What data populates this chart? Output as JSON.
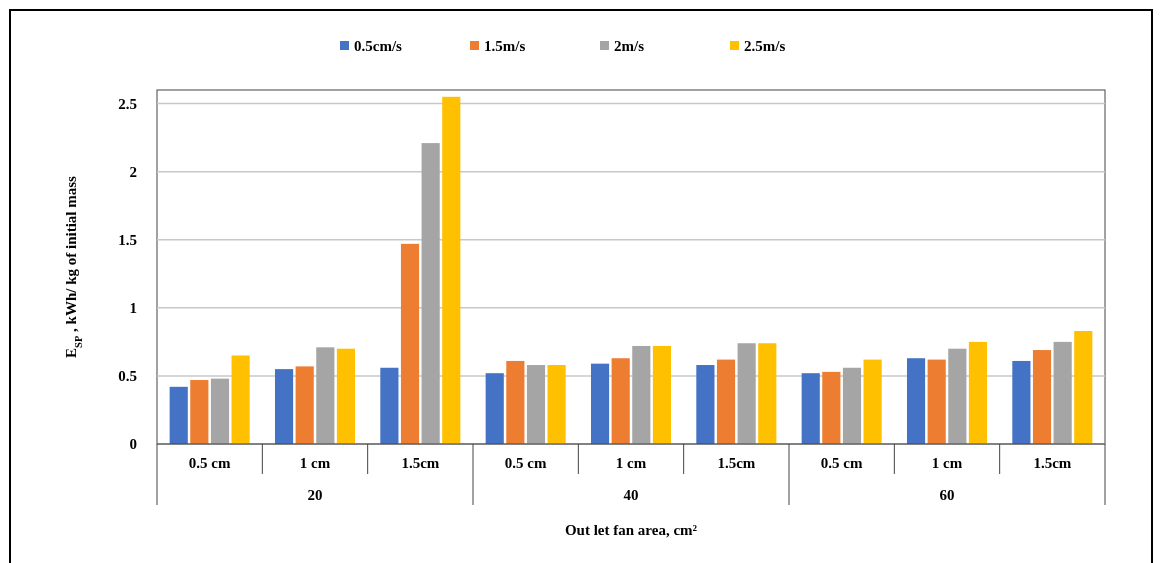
{
  "chart_data": {
    "type": "bar",
    "xlabel": "Out let fan area, cm²",
    "ylabel": "E$_{SP}$ , kWh/ kg of initial mass",
    "categories": [
      "0.5 cm",
      "1 cm",
      "1.5cm",
      "0.5 cm",
      "1 cm",
      "1.5cm",
      "0.5 cm",
      "1 cm",
      "1.5cm"
    ],
    "annotations": [
      "20",
      "40",
      "60"
    ],
    "series": [
      {
        "name": "0.5cm/s",
        "color": "#4472c4",
        "values": [
          0.42,
          0.55,
          0.56,
          0.52,
          0.59,
          0.58,
          0.52,
          0.63,
          0.61
        ]
      },
      {
        "name": "1.5m/s",
        "color": "#ed7d31",
        "values": [
          0.47,
          0.57,
          1.47,
          0.61,
          0.63,
          0.62,
          0.53,
          0.62,
          0.69
        ]
      },
      {
        "name": "2m/s",
        "color": "#a5a5a5",
        "values": [
          0.48,
          0.71,
          2.21,
          0.58,
          0.72,
          0.74,
          0.56,
          0.7,
          0.75
        ]
      },
      {
        "name": "2.5m/s",
        "color": "#ffc000",
        "values": [
          0.65,
          0.7,
          2.55,
          0.58,
          0.72,
          0.74,
          0.62,
          0.75,
          0.83
        ]
      }
    ],
    "ylim": [
      0,
      2.6
    ],
    "yticks": [
      0,
      0.5,
      1,
      1.5,
      2,
      2.5
    ],
    "grid": "y",
    "legend": "top"
  }
}
